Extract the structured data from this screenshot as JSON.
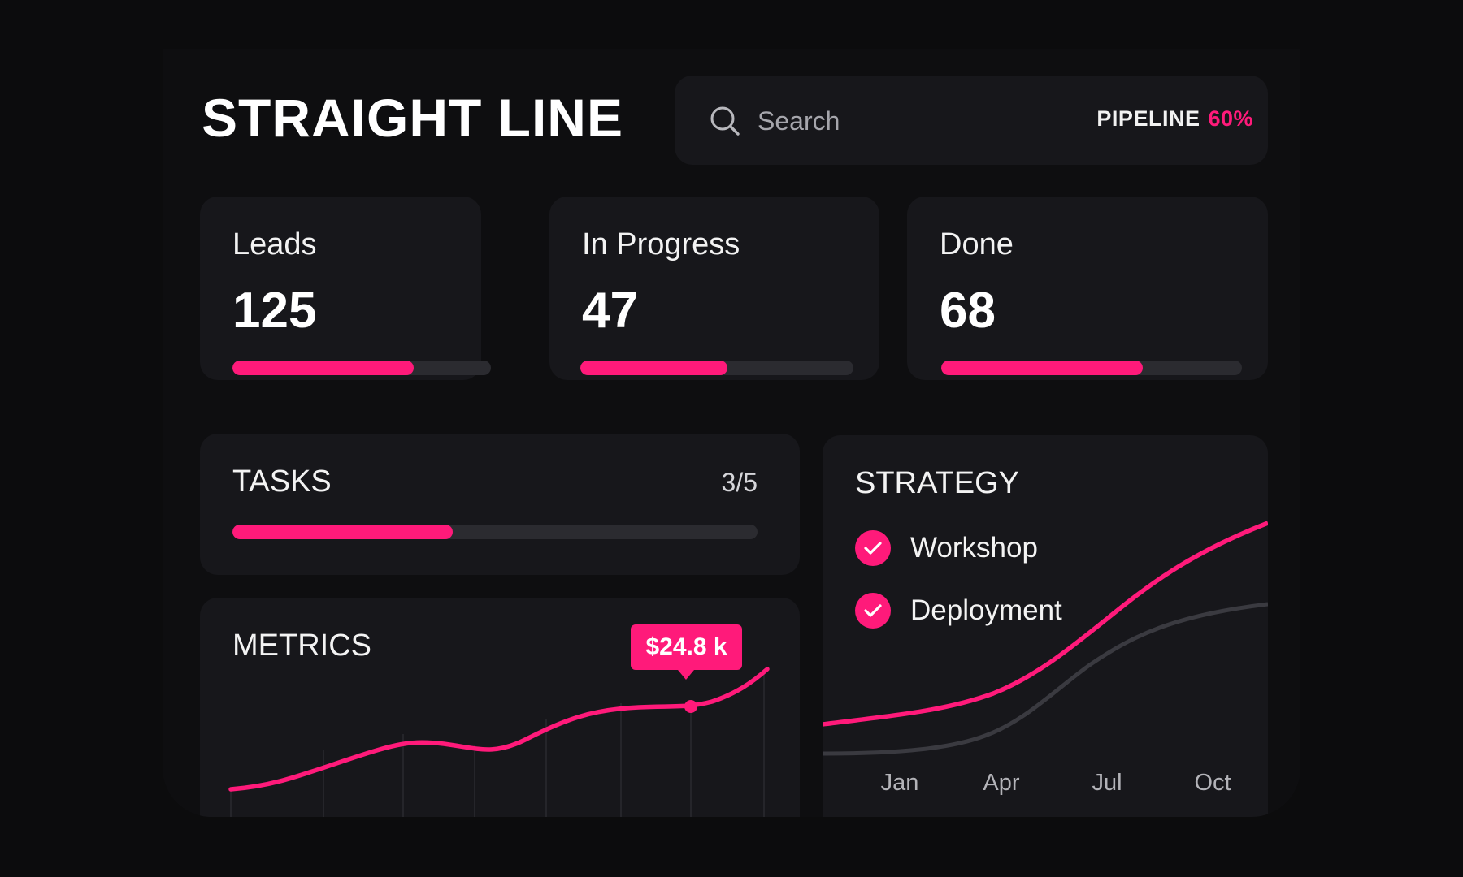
{
  "app": {
    "title": "STRAIGHT LINE"
  },
  "search": {
    "placeholder": "Search",
    "icon": "search-icon"
  },
  "pipeline": {
    "label": "PIPELINE",
    "value": "60%",
    "value_color": "#ff1a7a"
  },
  "stats": [
    {
      "label": "Leads",
      "value": "125",
      "progress": 0.7
    },
    {
      "label": "In Progress",
      "value": "47",
      "progress": 0.54
    },
    {
      "label": "Done",
      "value": "68",
      "progress": 0.67
    }
  ],
  "tasks": {
    "title": "TASKS",
    "count": "3/5",
    "progress": 0.42
  },
  "strategy": {
    "title": "STRATEGY",
    "items": [
      {
        "label": "Workshop",
        "checked": true,
        "icon": "check-icon"
      },
      {
        "label": "Deployment",
        "checked": true,
        "icon": "check-icon"
      }
    ],
    "months": [
      "Jan",
      "Apr",
      "Jul",
      "Oct"
    ]
  },
  "metrics": {
    "title": "METRICS",
    "tooltip": "$24.8 k"
  },
  "colors": {
    "accent": "#ff1a7a",
    "background": "#0c0c0d",
    "card": "#17171b",
    "track": "#2b2b30",
    "secondary_line": "#3a3a40"
  }
}
